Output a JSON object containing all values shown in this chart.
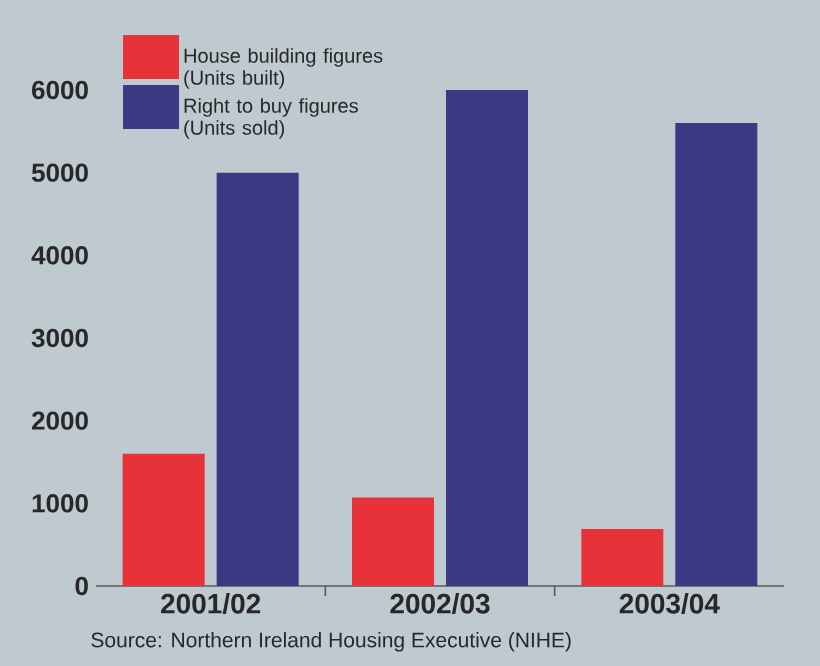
{
  "chart_data": {
    "type": "bar",
    "categories": [
      "2001/02",
      "2002/03",
      "2003/04"
    ],
    "series": [
      {
        "name": "House building figures (Units built)",
        "color": "#e8323a",
        "values": [
          1600,
          1070,
          690
        ]
      },
      {
        "name": "Right to buy figures (Units sold)",
        "color": "#3b3984",
        "values": [
          5000,
          6000,
          5600
        ]
      }
    ],
    "ylim": [
      0,
      6000
    ],
    "yticks": [
      0,
      1000,
      2000,
      3000,
      4000,
      5000,
      6000
    ],
    "grid": false,
    "legend": "top left",
    "annotations": [
      "Source: Northern Ireland Housing Executive (NIHE)"
    ]
  }
}
